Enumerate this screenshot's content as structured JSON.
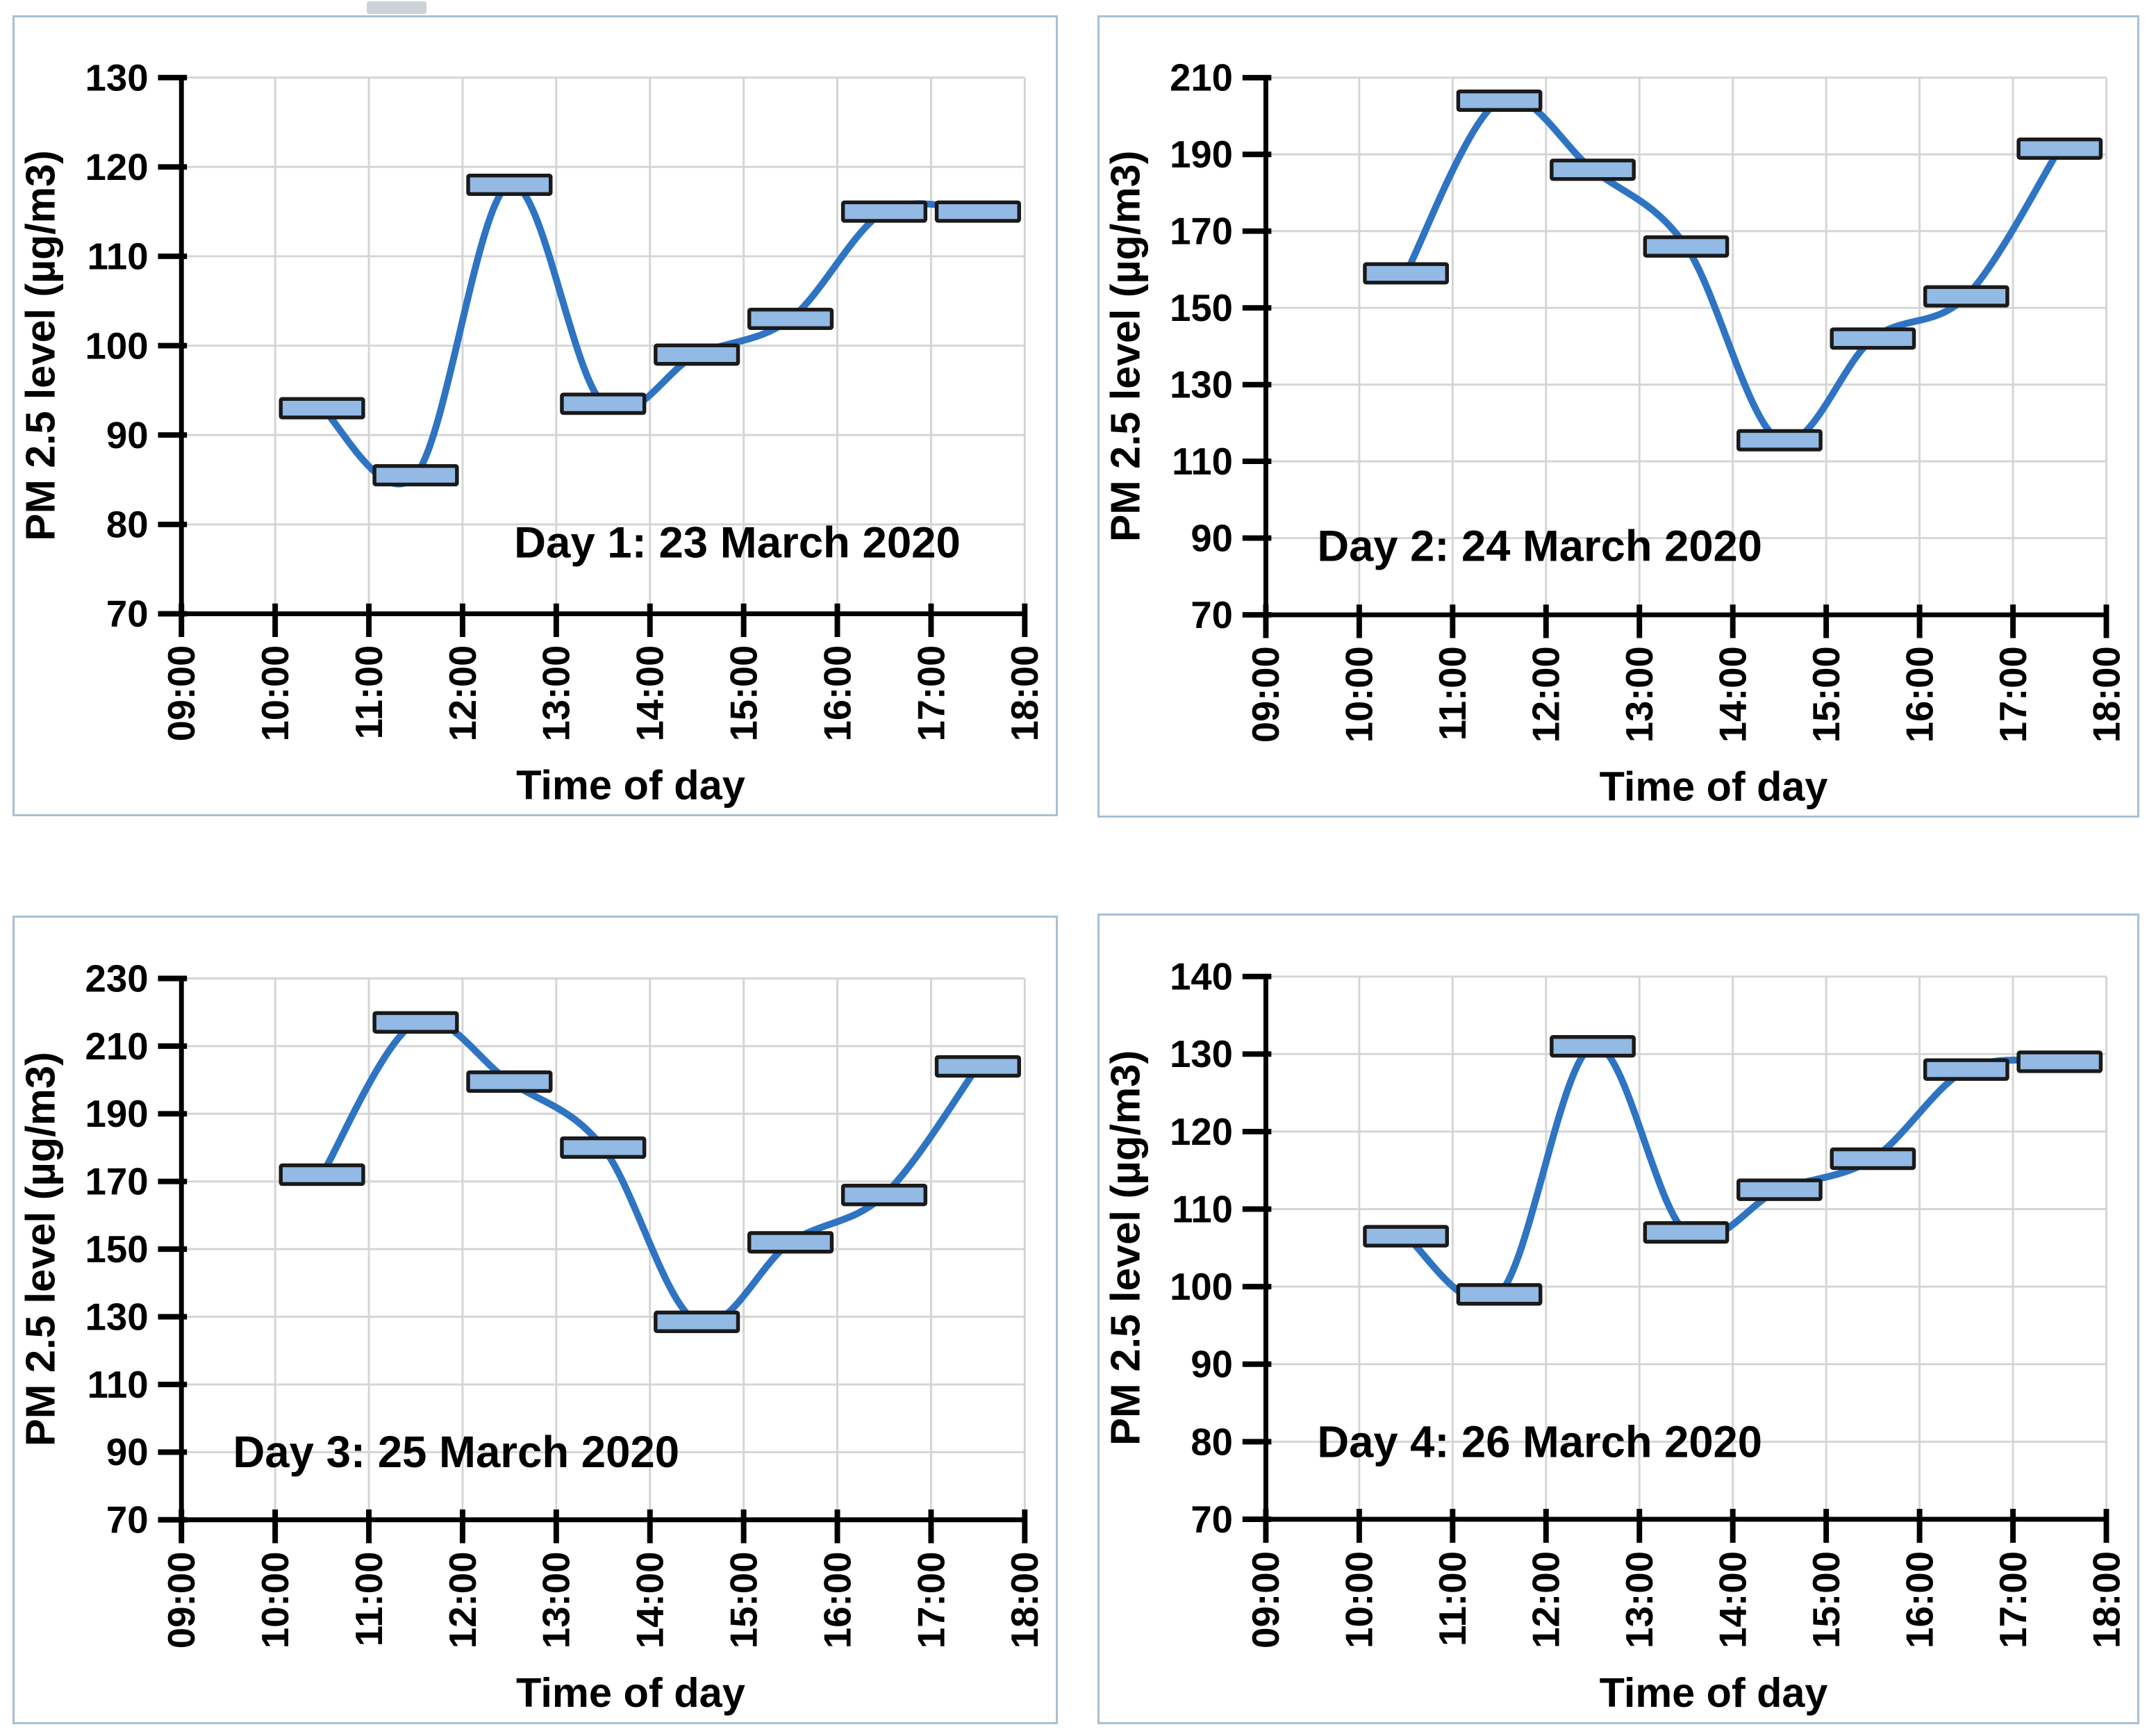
{
  "styles": {
    "line_color": "#2e74c2",
    "marker_fill": "#93b9e5",
    "marker_stroke": "#1a1a1a",
    "grid_color": "#d5d5d5",
    "axis_color": "#000000",
    "text_color": "#000000",
    "panel_border_color": "#a7c0d6",
    "background": "#ffffff"
  },
  "chart_data": [
    {
      "type": "line",
      "title": "Day 1: 23 March 2020",
      "xlabel": "Time of day",
      "ylabel": "PM 2.5 level (µg/m3)",
      "x": [
        10.5,
        11.5,
        12.5,
        13.5,
        14.5,
        15.5,
        16.5,
        17.5
      ],
      "values": [
        93,
        85.5,
        118,
        93.5,
        99,
        103,
        115,
        115
      ],
      "xlim": [
        9,
        18
      ],
      "ylim": [
        70,
        130
      ],
      "yticks": [
        70,
        80,
        90,
        100,
        110,
        120,
        130
      ],
      "xticks": [
        "09:00",
        "10:00",
        "11:00",
        "12:00",
        "13:00",
        "14:00",
        "15:00",
        "16:00",
        "17:00",
        "18:00"
      ],
      "grid": true,
      "marker": "horizontal-dash",
      "legend": "none",
      "annotation_pos": {
        "x": 12.55,
        "y": 78
      }
    },
    {
      "type": "line",
      "title": "Day 2: 24 March 2020",
      "xlabel": "Time of day",
      "ylabel": "PM 2.5 level (µg/m3)",
      "x": [
        10.5,
        11.5,
        12.5,
        13.5,
        14.5,
        15.5,
        16.5,
        17.5
      ],
      "values": [
        159,
        204,
        186,
        166,
        115.5,
        142,
        153,
        191.5
      ],
      "xlim": [
        9,
        18
      ],
      "ylim": [
        70,
        210
      ],
      "yticks": [
        70,
        90,
        110,
        130,
        150,
        170,
        190,
        210
      ],
      "xticks": [
        "09:00",
        "10:00",
        "11:00",
        "12:00",
        "13:00",
        "14:00",
        "15:00",
        "16:00",
        "17:00",
        "18:00"
      ],
      "grid": true,
      "marker": "horizontal-dash",
      "legend": "none",
      "annotation_pos": {
        "x": 9.55,
        "y": 88
      }
    },
    {
      "type": "line",
      "title": "Day 3: 25 March 2020",
      "xlabel": "Time of day",
      "ylabel": "PM 2.5 level (µg/m3)",
      "x": [
        10.5,
        11.5,
        12.5,
        13.5,
        14.5,
        15.5,
        16.5,
        17.5
      ],
      "values": [
        172,
        217,
        199.5,
        180,
        128.5,
        152,
        166,
        204
      ],
      "xlim": [
        9,
        18
      ],
      "ylim": [
        70,
        230
      ],
      "yticks": [
        70,
        90,
        110,
        130,
        150,
        170,
        190,
        210,
        230
      ],
      "xticks": [
        "09:00",
        "10:00",
        "11:00",
        "12:00",
        "13:00",
        "14:00",
        "15:00",
        "16:00",
        "17:00",
        "18:00"
      ],
      "grid": true,
      "marker": "horizontal-dash",
      "legend": "none",
      "annotation_pos": {
        "x": 9.55,
        "y": 90
      }
    },
    {
      "type": "line",
      "title": "Day 4: 26 March 2020",
      "xlabel": "Time of day",
      "ylabel": "PM 2.5 level (µg/m3)",
      "x": [
        10.5,
        11.5,
        12.5,
        13.5,
        14.5,
        15.5,
        16.5,
        17.5
      ],
      "values": [
        106.5,
        99,
        131,
        107,
        112.5,
        116.5,
        128,
        129
      ],
      "xlim": [
        9,
        18
      ],
      "ylim": [
        70,
        140
      ],
      "yticks": [
        70,
        80,
        90,
        100,
        110,
        120,
        130,
        140
      ],
      "xticks": [
        "09:00",
        "10:00",
        "11:00",
        "12:00",
        "13:00",
        "14:00",
        "15:00",
        "16:00",
        "17:00",
        "18:00"
      ],
      "grid": true,
      "marker": "horizontal-dash",
      "legend": "none",
      "annotation_pos": {
        "x": 9.55,
        "y": 80
      }
    }
  ]
}
